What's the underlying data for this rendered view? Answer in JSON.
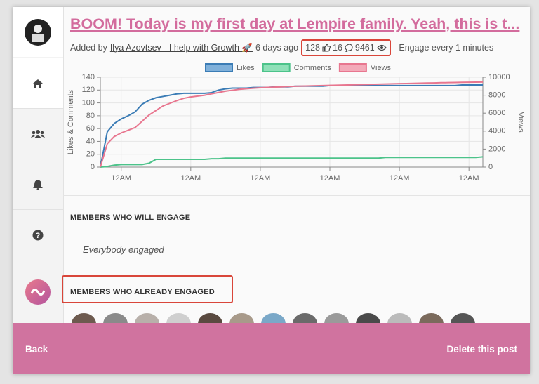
{
  "post": {
    "title": "BOOM! Today is my first day at Lempire family. Yeah, this is t...",
    "added_by": "Added by",
    "author": "Ilya Azovtsev - I help with Growth 🚀",
    "age": "6 days ago",
    "likes": 128,
    "comments": 16,
    "views": 9461,
    "engage_note": "- Engage every 1 minutes"
  },
  "chart_data": {
    "type": "line",
    "categories": [
      null,
      null,
      null,
      "12AM",
      null,
      null,
      null,
      null,
      null,
      null,
      null,
      null,
      null,
      "12AM",
      null,
      null,
      null,
      null,
      null,
      null,
      null,
      null,
      null,
      "12AM",
      null,
      null,
      null,
      null,
      null,
      null,
      null,
      null,
      null,
      "12AM",
      null,
      null,
      null,
      null,
      null,
      null,
      null,
      null,
      null,
      "12AM",
      null,
      null,
      null,
      null,
      null,
      null,
      null,
      null,
      null,
      "12AM",
      null,
      null
    ],
    "series": [
      {
        "name": "Likes",
        "color": "#3b7cb5",
        "fill": "#7fb0da",
        "values": [
          0,
          55,
          68,
          75,
          80,
          86,
          98,
          104,
          108,
          110,
          112,
          114,
          115,
          115,
          115,
          115,
          116,
          120,
          122,
          123,
          123,
          123,
          124,
          124,
          124,
          125,
          125,
          125,
          126,
          126,
          126,
          126,
          126,
          127,
          127,
          127,
          127,
          127,
          127,
          127,
          127,
          127,
          127,
          127,
          127,
          127,
          127,
          127,
          127,
          127,
          127,
          127,
          128,
          128,
          128,
          128
        ]
      },
      {
        "name": "Comments",
        "color": "#4cc38a",
        "fill": "#8fe0b8",
        "values": [
          0,
          1,
          3,
          4,
          4,
          4,
          4,
          6,
          12,
          12,
          12,
          12,
          12,
          12,
          12,
          12,
          13,
          13,
          14,
          14,
          14,
          14,
          14,
          14,
          14,
          14,
          14,
          14,
          14,
          14,
          14,
          14,
          14,
          14,
          14,
          14,
          14,
          14,
          14,
          14,
          14,
          15,
          15,
          15,
          15,
          15,
          15,
          15,
          15,
          15,
          15,
          15,
          15,
          15,
          15,
          16
        ]
      },
      {
        "name": "Views",
        "color": "#e8768f",
        "fill": "#f3aab9",
        "axis": "y2",
        "values": [
          0,
          2600,
          3400,
          3800,
          4100,
          4400,
          5100,
          5800,
          6300,
          6800,
          7100,
          7400,
          7650,
          7800,
          7900,
          8000,
          8150,
          8300,
          8450,
          8550,
          8650,
          8720,
          8780,
          8830,
          8870,
          8900,
          8930,
          8960,
          8990,
          9010,
          9030,
          9050,
          9070,
          9090,
          9110,
          9130,
          9150,
          9170,
          9190,
          9210,
          9230,
          9250,
          9270,
          9290,
          9300,
          9320,
          9340,
          9360,
          9370,
          9390,
          9400,
          9415,
          9430,
          9440,
          9450,
          9461
        ]
      }
    ],
    "ylabel": "Likes & Comments",
    "y2label": "Views",
    "ylim": [
      0,
      140
    ],
    "yticks": [
      0,
      20,
      40,
      60,
      80,
      100,
      120,
      140
    ],
    "y2lim": [
      0,
      10000
    ],
    "y2ticks": [
      0,
      2000,
      4000,
      6000,
      8000,
      10000
    ],
    "grid": true,
    "legend": "top"
  },
  "sections": [
    {
      "heading": "MEMBERS WHO WILL ENGAGE",
      "body": "Everybody engaged"
    },
    {
      "heading": "MEMBERS WHO ALREADY ENGAGED"
    }
  ],
  "footer": {
    "back": "Back",
    "delete": "Delete this post"
  }
}
